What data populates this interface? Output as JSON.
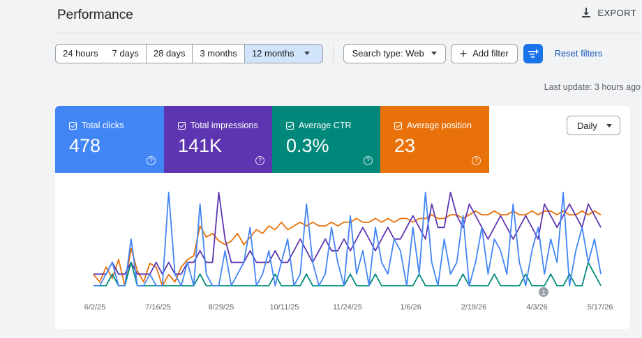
{
  "header": {
    "title": "Performance",
    "export_label": "EXPORT"
  },
  "toolbar": {
    "date_ranges": [
      "24 hours",
      "7 days",
      "28 days",
      "3 months",
      "12 months"
    ],
    "selected_range": "12 months",
    "search_type": "Search type: Web",
    "add_filter": "Add filter",
    "reset_filters": "Reset filters"
  },
  "last_update": "Last update: 3 hours ago",
  "metrics": {
    "clicks": {
      "label": "Total clicks",
      "value": "478",
      "color": "#4285f4"
    },
    "impressions": {
      "label": "Total impressions",
      "value": "141K",
      "color": "#5e35b1"
    },
    "ctr": {
      "label": "Average CTR",
      "value": "0.3%",
      "color": "#00897b"
    },
    "position": {
      "label": "Average position",
      "value": "23",
      "color": "#e8710a"
    }
  },
  "granularity": "Daily",
  "annotation_marker": "1",
  "chart_data": {
    "type": "line",
    "x_tick_labels": [
      "6/2/25",
      "7/16/25",
      "8/29/25",
      "10/11/25",
      "11/24/25",
      "1/6/26",
      "2/19/26",
      "4/3/26",
      "5/17/26"
    ],
    "y_axis": "none shown (normalized per metric)",
    "grid": false,
    "legend": "metric cards above chart",
    "series": [
      {
        "name": "Total clicks",
        "color": "#4285f4",
        "values": [
          1,
          1,
          2,
          3,
          1,
          1,
          5,
          1,
          1,
          2,
          1,
          1,
          9,
          2,
          1,
          3,
          1,
          8,
          2,
          1,
          1,
          4,
          1,
          2,
          3,
          6,
          1,
          2,
          4,
          1,
          3,
          5,
          1,
          2,
          8,
          3,
          1,
          2,
          6,
          3,
          1,
          7,
          2,
          4,
          1,
          6,
          3,
          2,
          5,
          4,
          1,
          6,
          2,
          9,
          3,
          1,
          5,
          2,
          3,
          7,
          1,
          3,
          6,
          2,
          5,
          4,
          2,
          8,
          3,
          1,
          4,
          6,
          2,
          5,
          3,
          9,
          1,
          4,
          6,
          3,
          5,
          2
        ]
      },
      {
        "name": "Total impressions",
        "color": "#5e35b1",
        "values": [
          2,
          2,
          2,
          3,
          2,
          2,
          3,
          2,
          2,
          2,
          3,
          2,
          3,
          2,
          2,
          3,
          3,
          4,
          3,
          3,
          9,
          5,
          3,
          3,
          3,
          4,
          3,
          3,
          3,
          4,
          3,
          3,
          4,
          5,
          4,
          3,
          4,
          5,
          4,
          4,
          5,
          4,
          5,
          6,
          5,
          4,
          5,
          6,
          5,
          5,
          6,
          7,
          6,
          5,
          8,
          6,
          6,
          9,
          7,
          6,
          8,
          7,
          6,
          5,
          6,
          7,
          6,
          5,
          6,
          7,
          6,
          5,
          8,
          7,
          6,
          7,
          8,
          7,
          6,
          8,
          7,
          6
        ]
      },
      {
        "name": "Average CTR",
        "color": "#00897b",
        "values": [
          1,
          1,
          1,
          2,
          1,
          1,
          3,
          1,
          1,
          1,
          1,
          1,
          1,
          1,
          1,
          1,
          1,
          2,
          1,
          1,
          1,
          1,
          1,
          1,
          1,
          1,
          1,
          1,
          1,
          2,
          1,
          1,
          1,
          1,
          2,
          1,
          1,
          1,
          1,
          1,
          1,
          2,
          1,
          1,
          1,
          2,
          1,
          1,
          1,
          1,
          1,
          1,
          2,
          1,
          1,
          1,
          1,
          1,
          1,
          2,
          1,
          1,
          1,
          1,
          2,
          1,
          1,
          1,
          1,
          2,
          1,
          1,
          1,
          2,
          1,
          1,
          2,
          1,
          1,
          3,
          2,
          1
        ]
      },
      {
        "name": "Average position",
        "color": "#e8710a",
        "values": [
          22,
          24,
          20,
          23,
          18,
          25,
          15,
          21,
          24,
          19,
          20,
          25,
          22,
          24,
          20,
          18,
          17,
          9,
          12,
          11,
          13,
          14,
          13,
          11,
          14,
          12,
          10,
          11,
          9,
          10,
          8,
          10,
          9,
          8,
          9,
          8,
          9,
          9,
          8,
          9,
          8,
          8,
          7,
          8,
          8,
          7,
          8,
          7,
          8,
          7,
          7,
          8,
          7,
          7,
          6,
          7,
          7,
          6,
          6,
          7,
          6,
          5,
          6,
          6,
          5,
          6,
          6,
          5,
          6,
          6,
          5,
          6,
          5,
          5,
          6,
          5,
          6,
          6,
          5,
          6,
          5,
          6
        ]
      }
    ]
  }
}
